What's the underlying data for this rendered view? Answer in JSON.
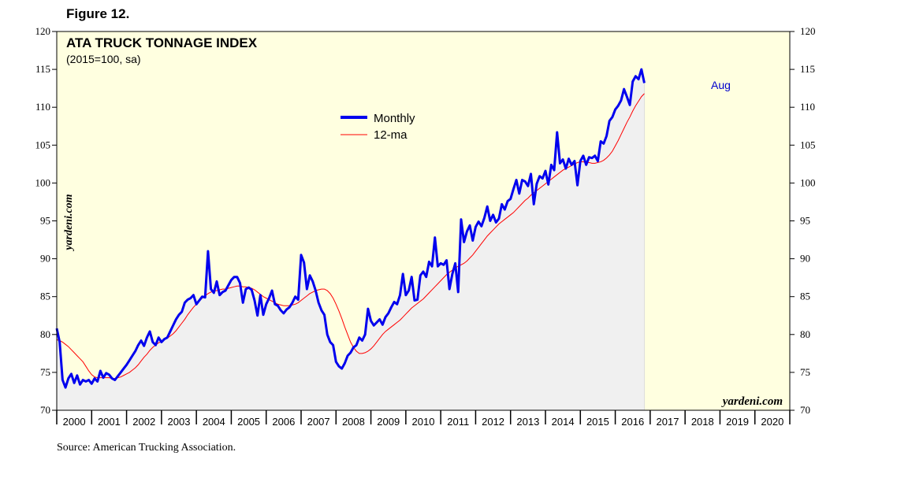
{
  "figure_label": "Figure 12.",
  "source": "Source: American Trucking Association.",
  "colors": {
    "plot_bg": "#ffffe0",
    "area_fill": "#f0f0f0",
    "monthly": "#0000ee",
    "ma": "#ff0000",
    "aug_label": "#0000cc"
  },
  "chart_data": {
    "type": "line",
    "title": "ATA TRUCK TONNAGE INDEX",
    "subtitle": "(2015=100, sa)",
    "watermark_vertical": "yardeni.com",
    "watermark_corner": "yardeni.com",
    "end_label": "Aug",
    "ylim": [
      70,
      120
    ],
    "y_ticks": [
      70,
      75,
      80,
      85,
      90,
      95,
      100,
      105,
      110,
      115,
      120
    ],
    "x_range": [
      2000.0,
      2021.0
    ],
    "x_tick_labels": [
      "2000",
      "2001",
      "2002",
      "2003",
      "2004",
      "2005",
      "2006",
      "2007",
      "2008",
      "2009",
      "2010",
      "2011",
      "2012",
      "2013",
      "2014",
      "2015",
      "2016",
      "2017",
      "2018",
      "2019",
      "2020"
    ],
    "legend": [
      {
        "name": "Monthly",
        "key": "monthly"
      },
      {
        "name": "12-ma",
        "key": "ma"
      }
    ],
    "series": [
      {
        "name": "Monthly",
        "start": 2000.0,
        "step_months": 1,
        "values": [
          80.8,
          79.0,
          74.0,
          73.0,
          74.2,
          74.8,
          73.6,
          74.6,
          73.4,
          74.0,
          73.8,
          74.0,
          73.5,
          74.2,
          73.8,
          75.2,
          74.3,
          74.9,
          74.7,
          74.2,
          74.0,
          74.5,
          75.0,
          75.5,
          76.0,
          76.6,
          77.2,
          77.8,
          78.6,
          79.2,
          78.5,
          79.6,
          80.4,
          79.0,
          78.6,
          79.6,
          79.0,
          79.4,
          79.6,
          80.4,
          81.2,
          82.0,
          82.6,
          83.0,
          84.2,
          84.6,
          84.8,
          85.2,
          84.0,
          84.5,
          85.0,
          84.9,
          91.0,
          86.0,
          85.5,
          87.0,
          85.2,
          85.6,
          85.8,
          86.5,
          87.2,
          87.6,
          87.6,
          86.8,
          84.2,
          86.0,
          86.2,
          85.9,
          84.5,
          82.5,
          85.2,
          82.6,
          84.0,
          84.8,
          85.8,
          84.0,
          83.8,
          83.2,
          82.8,
          83.3,
          83.6,
          84.2,
          85.0,
          84.6,
          90.5,
          89.5,
          86.0,
          87.8,
          87.0,
          85.8,
          84.2,
          83.2,
          82.6,
          80.0,
          79.0,
          78.6,
          76.4,
          75.8,
          75.5,
          76.2,
          77.2,
          77.6,
          78.3,
          78.6,
          79.6,
          79.2,
          80.0,
          83.4,
          81.8,
          81.2,
          81.6,
          82.0,
          81.3,
          82.3,
          82.8,
          83.6,
          84.3,
          84.0,
          85.2,
          88.0,
          85.2,
          85.8,
          87.6,
          84.5,
          84.6,
          87.8,
          88.3,
          87.6,
          89.6,
          89.0,
          92.8,
          89.0,
          89.4,
          89.2,
          89.8,
          86.0,
          88.0,
          89.4,
          85.6,
          95.2,
          92.2,
          93.6,
          94.4,
          92.4,
          94.2,
          94.9,
          94.3,
          95.4,
          96.9,
          95.0,
          95.8,
          94.8,
          95.3,
          97.2,
          96.5,
          97.6,
          97.9,
          99.2,
          100.4,
          98.6,
          100.4,
          100.2,
          99.6,
          101.2,
          97.2,
          99.9,
          100.9,
          100.6,
          101.6,
          99.8,
          102.4,
          101.7,
          106.7,
          102.6,
          103.1,
          101.9,
          103.2,
          102.4,
          102.9,
          99.7,
          102.9,
          103.6,
          102.4,
          103.4,
          103.3,
          103.6,
          102.9,
          105.5,
          105.2,
          106.2,
          108.2,
          108.7,
          109.7,
          110.2,
          110.9,
          112.4,
          111.4,
          110.3,
          113.4,
          114.1,
          113.7,
          115.0,
          113.2
        ]
      },
      {
        "name": "12-ma",
        "start": 2000.0,
        "step_months": 1,
        "values": [
          79.3,
          79.2,
          79.0,
          78.7,
          78.4,
          78.0,
          77.6,
          77.2,
          76.8,
          76.4,
          75.8,
          75.2,
          74.7,
          74.4,
          74.3,
          74.3,
          74.3,
          74.3,
          74.3,
          74.2,
          74.2,
          74.3,
          74.4,
          74.6,
          74.8,
          75.0,
          75.3,
          75.6,
          76.0,
          76.5,
          77.0,
          77.4,
          77.9,
          78.3,
          78.6,
          78.9,
          79.1,
          79.3,
          79.5,
          79.8,
          80.1,
          80.5,
          81.0,
          81.5,
          82.0,
          82.6,
          83.1,
          83.6,
          84.0,
          84.4,
          84.8,
          85.1,
          85.4,
          85.6,
          85.7,
          85.8,
          85.9,
          86.0,
          86.0,
          86.1,
          86.2,
          86.3,
          86.4,
          86.4,
          86.3,
          86.3,
          86.2,
          86.1,
          85.9,
          85.6,
          85.3,
          85.0,
          84.8,
          84.6,
          84.4,
          84.2,
          84.0,
          83.9,
          83.8,
          83.8,
          83.8,
          83.9,
          84.0,
          84.2,
          84.5,
          84.8,
          85.1,
          85.4,
          85.6,
          85.8,
          85.9,
          86.0,
          86.0,
          85.8,
          85.4,
          84.8,
          84.0,
          83.1,
          82.1,
          81.0,
          80.0,
          79.0,
          78.3,
          77.8,
          77.5,
          77.5,
          77.6,
          77.8,
          78.1,
          78.5,
          79.0,
          79.5,
          80.0,
          80.4,
          80.7,
          81.0,
          81.3,
          81.6,
          81.9,
          82.3,
          82.7,
          83.1,
          83.5,
          83.8,
          84.1,
          84.4,
          84.7,
          85.1,
          85.5,
          85.9,
          86.3,
          86.7,
          87.1,
          87.5,
          87.9,
          88.2,
          88.5,
          88.8,
          89.0,
          89.2,
          89.4,
          89.7,
          90.1,
          90.5,
          91.0,
          91.5,
          92.0,
          92.5,
          93.0,
          93.4,
          93.8,
          94.2,
          94.6,
          94.9,
          95.2,
          95.5,
          95.8,
          96.1,
          96.5,
          96.9,
          97.3,
          97.7,
          98.0,
          98.4,
          98.7,
          99.0,
          99.3,
          99.6,
          99.9,
          100.2,
          100.5,
          100.8,
          101.1,
          101.4,
          101.7,
          101.9,
          102.1,
          102.3,
          102.5,
          102.7,
          102.8,
          102.8,
          102.7,
          102.7,
          102.6,
          102.6,
          102.7,
          102.8,
          103.0,
          103.3,
          103.7,
          104.2,
          104.9,
          105.6,
          106.4,
          107.2,
          108.0,
          108.7,
          109.5,
          110.2,
          110.8,
          111.4,
          111.8
        ]
      }
    ]
  }
}
